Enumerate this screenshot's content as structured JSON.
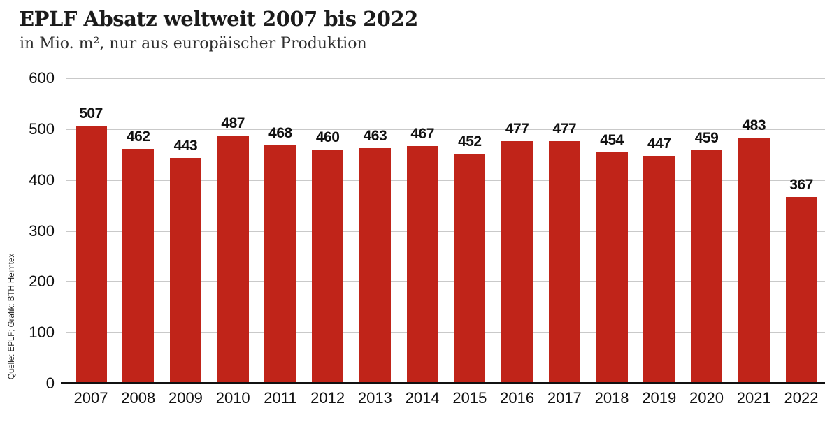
{
  "header": {
    "title": "EPLF Absatz weltweit 2007 bis 2022",
    "subtitle": "in Mio. m², nur aus europäischer Produktion"
  },
  "source": "Quelle: EPLF; Grafik: BTH Heimtex",
  "chart_data": {
    "type": "bar",
    "title": "EPLF Absatz weltweit 2007 bis 2022",
    "subtitle": "in Mio. m², nur aus europäischer Produktion",
    "categories": [
      "2007",
      "2008",
      "2009",
      "2010",
      "2011",
      "2012",
      "2013",
      "2014",
      "2015",
      "2016",
      "2017",
      "2018",
      "2019",
      "2020",
      "2021",
      "2022"
    ],
    "values": [
      507,
      462,
      443,
      487,
      468,
      460,
      463,
      467,
      452,
      477,
      477,
      454,
      447,
      459,
      483,
      367
    ],
    "xlabel": "",
    "ylabel": "",
    "ylim": [
      0,
      600
    ],
    "ytick_interval": 100,
    "yticks": [
      0,
      100,
      200,
      300,
      400,
      500,
      600
    ],
    "grid": true,
    "legend": "none",
    "data_labels": true,
    "bar_color": "#c02419",
    "grid_color": "#c9c9c9",
    "axis_color": "#111111",
    "source": "Quelle: EPLF; Grafik: BTH Heimtex"
  }
}
